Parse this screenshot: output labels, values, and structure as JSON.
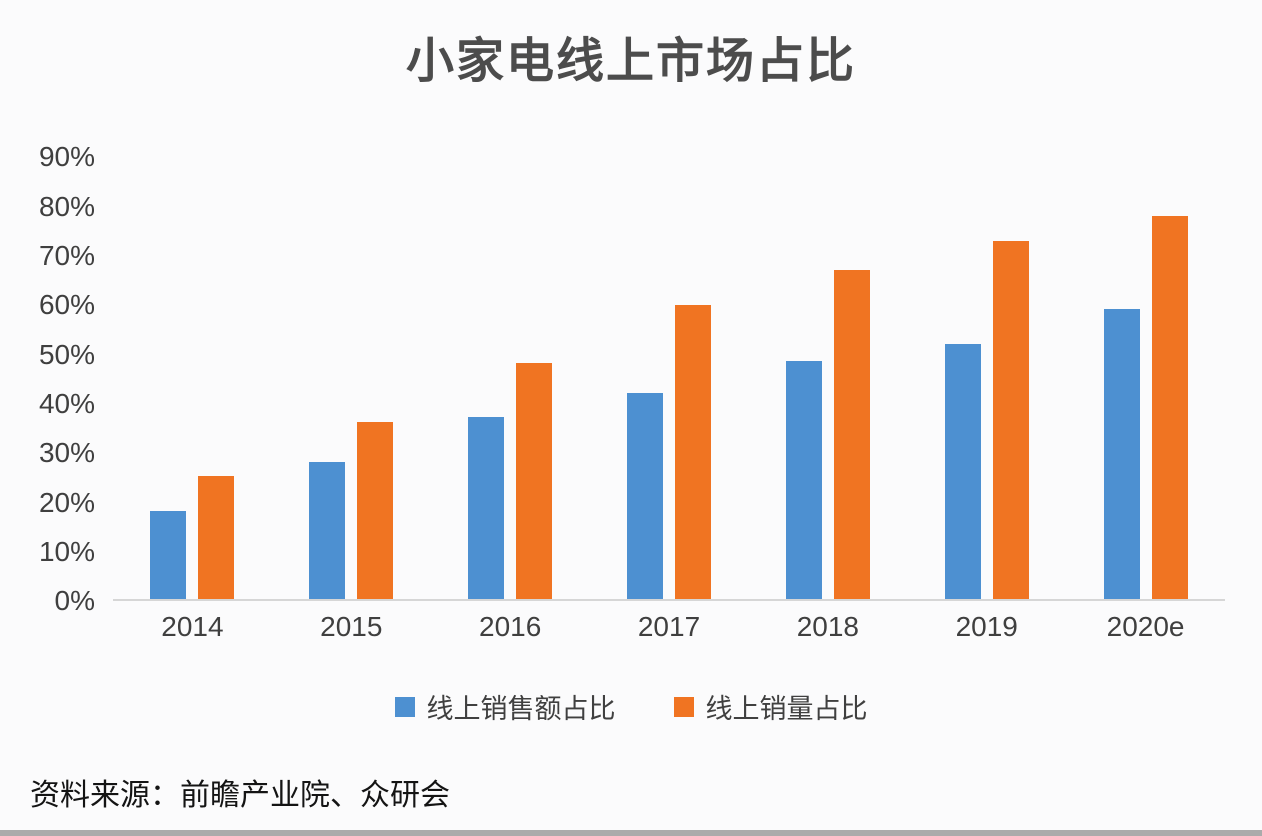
{
  "title": "小家电线上市场占比",
  "source": "资料来源：前瞻产业院、众研会",
  "colors": {
    "series_blue": "#4D90D1",
    "series_orange": "#F07422",
    "axis_line": "#D6D6D6",
    "title_text": "#4C4C4C",
    "tick_text": "#3F3F3F",
    "bottom_strip": "#ABABAB"
  },
  "chart_data": {
    "type": "bar",
    "title": "小家电线上市场占比",
    "categories": [
      "2014",
      "2015",
      "2016",
      "2017",
      "2018",
      "2019",
      "2020e"
    ],
    "series": [
      {
        "name": "线上销售额占比",
        "color": "#4D90D1",
        "values": [
          18,
          28,
          37,
          42,
          48.5,
          52,
          59
        ]
      },
      {
        "name": "线上销量占比",
        "color": "#F07422",
        "values": [
          25,
          36,
          48,
          60,
          67,
          73,
          78
        ]
      }
    ],
    "xlabel": "",
    "ylabel": "",
    "ylim": [
      0,
      90
    ],
    "yticks": [
      "0%",
      "10%",
      "20%",
      "30%",
      "40%",
      "50%",
      "60%",
      "70%",
      "80%",
      "90%"
    ],
    "grid": false,
    "legend_position": "bottom"
  }
}
